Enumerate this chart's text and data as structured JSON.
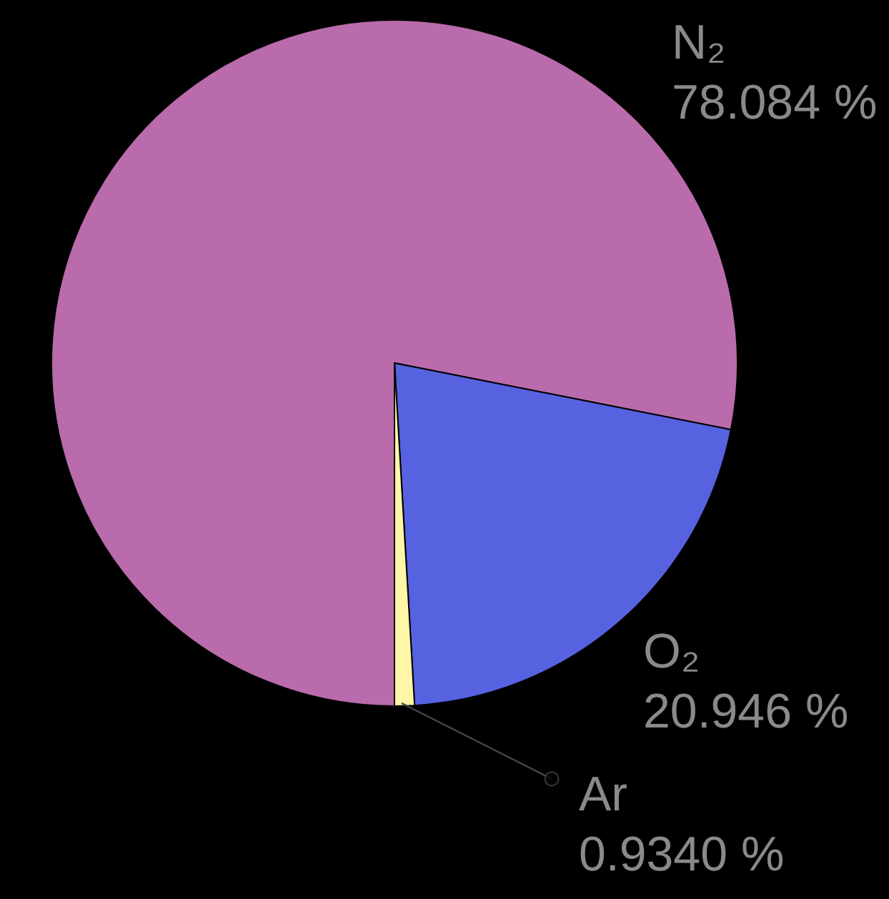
{
  "chart_data": {
    "type": "pie",
    "categories": [
      "N₂",
      "O₂",
      "Ar"
    ],
    "values": [
      78.084,
      20.946,
      0.934
    ],
    "colors": [
      "#b96bab",
      "#5762e0",
      "#fff6a8"
    ],
    "value_labels": [
      "78.084 %",
      "20.946 %",
      "0.9340 %"
    ]
  }
}
